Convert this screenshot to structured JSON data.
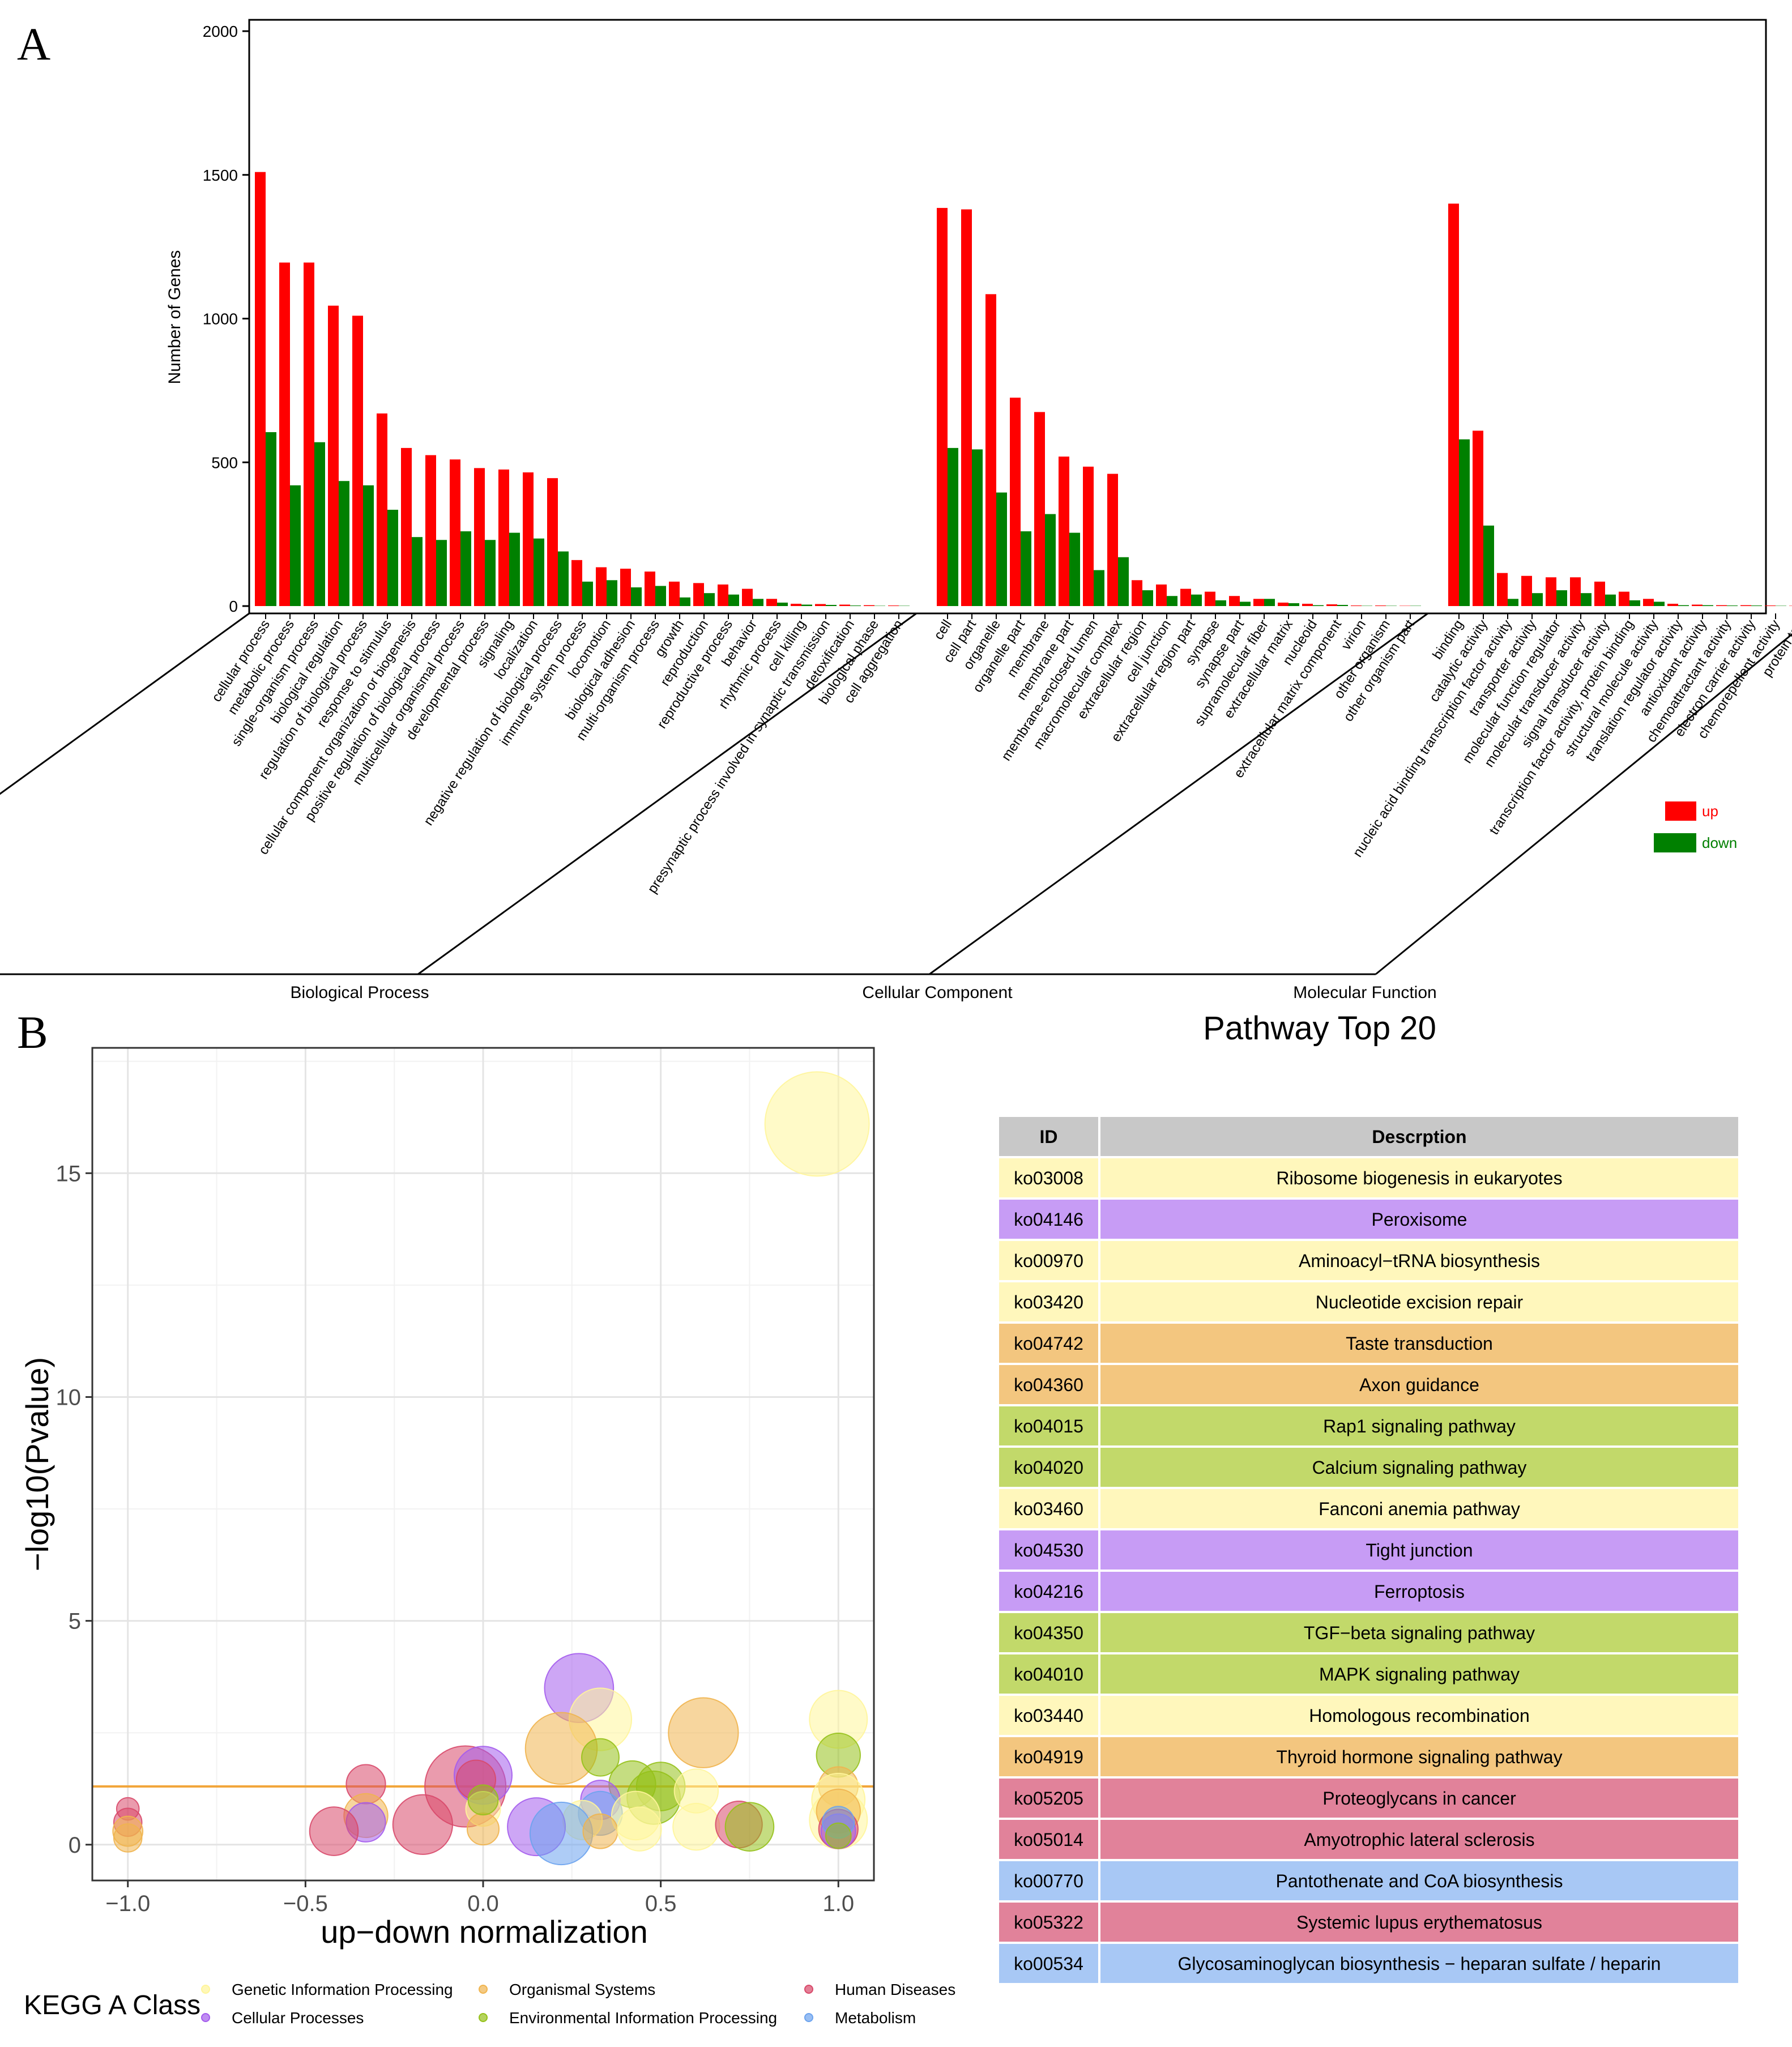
{
  "panel_labels": {
    "a": "A",
    "b": "B"
  },
  "chart_data": [
    {
      "type": "bar",
      "title": "",
      "ylabel": "Number of Genes",
      "xlabel": "",
      "ylim": [
        0,
        2000
      ],
      "yticks": [
        0,
        500,
        1000,
        1500,
        2000
      ],
      "legend": {
        "position": "right",
        "entries": [
          {
            "name": "up",
            "color": "#ff0000"
          },
          {
            "name": "down",
            "color": "#008000"
          }
        ]
      },
      "groups": [
        {
          "name": "Biological Process",
          "categories": [
            {
              "label": "cellular process",
              "up": 1510,
              "down": 605
            },
            {
              "label": "metabolic process",
              "up": 1195,
              "down": 420
            },
            {
              "label": "single-organism process",
              "up": 1195,
              "down": 570
            },
            {
              "label": "biological regulation",
              "up": 1045,
              "down": 435
            },
            {
              "label": "regulation of biological process",
              "up": 1010,
              "down": 420
            },
            {
              "label": "response to stimulus",
              "up": 670,
              "down": 335
            },
            {
              "label": "cellular component organization or biogenesis",
              "up": 550,
              "down": 240
            },
            {
              "label": "positive regulation of biological process",
              "up": 525,
              "down": 230
            },
            {
              "label": "multicellular organismal process",
              "up": 510,
              "down": 260
            },
            {
              "label": "developmental process",
              "up": 480,
              "down": 230
            },
            {
              "label": "signaling",
              "up": 475,
              "down": 255
            },
            {
              "label": "localization",
              "up": 465,
              "down": 235
            },
            {
              "label": "negative regulation of biological process",
              "up": 445,
              "down": 190
            },
            {
              "label": "immune system process",
              "up": 160,
              "down": 85
            },
            {
              "label": "locomotion",
              "up": 135,
              "down": 90
            },
            {
              "label": "biological adhesion",
              "up": 130,
              "down": 65
            },
            {
              "label": "multi-organism process",
              "up": 120,
              "down": 70
            },
            {
              "label": "growth",
              "up": 85,
              "down": 30
            },
            {
              "label": "reproduction",
              "up": 80,
              "down": 45
            },
            {
              "label": "reproductive process",
              "up": 75,
              "down": 40
            },
            {
              "label": "behavior",
              "up": 60,
              "down": 25
            },
            {
              "label": "rhythmic process",
              "up": 25,
              "down": 12
            },
            {
              "label": "cell killing",
              "up": 8,
              "down": 5
            },
            {
              "label": "presynaptic process involved in synaptic transmission",
              "up": 7,
              "down": 4
            },
            {
              "label": "detoxification",
              "up": 5,
              "down": 2
            },
            {
              "label": "biological phase",
              "up": 3,
              "down": 1
            },
            {
              "label": "cell aggregation",
              "up": 2,
              "down": 1
            }
          ]
        },
        {
          "name": "Cellular Component",
          "categories": [
            {
              "label": "cell",
              "up": 1385,
              "down": 550
            },
            {
              "label": "cell part",
              "up": 1380,
              "down": 545
            },
            {
              "label": "organelle",
              "up": 1085,
              "down": 395
            },
            {
              "label": "organelle part",
              "up": 725,
              "down": 260
            },
            {
              "label": "membrane",
              "up": 675,
              "down": 320
            },
            {
              "label": "membrane part",
              "up": 520,
              "down": 255
            },
            {
              "label": "membrane-enclosed lumen",
              "up": 485,
              "down": 125
            },
            {
              "label": "macromolecular complex",
              "up": 460,
              "down": 170
            },
            {
              "label": "extracellular region",
              "up": 90,
              "down": 55
            },
            {
              "label": "cell junction",
              "up": 75,
              "down": 35
            },
            {
              "label": "extracellular region part",
              "up": 60,
              "down": 40
            },
            {
              "label": "synapse",
              "up": 50,
              "down": 20
            },
            {
              "label": "synapse part",
              "up": 35,
              "down": 15
            },
            {
              "label": "supramolecular fiber",
              "up": 25,
              "down": 25
            },
            {
              "label": "extracellular matrix",
              "up": 12,
              "down": 10
            },
            {
              "label": "nucleoid",
              "up": 8,
              "down": 3
            },
            {
              "label": "extracellular matrix component",
              "up": 6,
              "down": 4
            },
            {
              "label": "virion",
              "up": 2,
              "down": 1
            },
            {
              "label": "other organism",
              "up": 2,
              "down": 1
            },
            {
              "label": "other organism part",
              "up": 1,
              "down": 1
            }
          ]
        },
        {
          "name": "Molecular Function",
          "categories": [
            {
              "label": "binding",
              "up": 1400,
              "down": 580
            },
            {
              "label": "catalytic activity",
              "up": 610,
              "down": 280
            },
            {
              "label": "nucleic acid binding transcription factor activity",
              "up": 115,
              "down": 25
            },
            {
              "label": "transporter activity",
              "up": 105,
              "down": 45
            },
            {
              "label": "molecular function regulator",
              "up": 100,
              "down": 55
            },
            {
              "label": "molecular transducer activity",
              "up": 100,
              "down": 45
            },
            {
              "label": "signal transducer activity",
              "up": 85,
              "down": 40
            },
            {
              "label": "transcription factor activity, protein binding",
              "up": 50,
              "down": 20
            },
            {
              "label": "structural molecule activity",
              "up": 25,
              "down": 15
            },
            {
              "label": "translation regulator activity",
              "up": 8,
              "down": 3
            },
            {
              "label": "antioxidant activity",
              "up": 5,
              "down": 3
            },
            {
              "label": "chemoattractant activity",
              "up": 3,
              "down": 2
            },
            {
              "label": "electron carrier activity",
              "up": 3,
              "down": 2
            },
            {
              "label": "chemorepellent activity",
              "up": 2,
              "down": 1
            },
            {
              "label": "protein tag",
              "up": 1,
              "down": 0
            }
          ]
        }
      ]
    },
    {
      "type": "scatter",
      "title": "",
      "xlabel": "up−down normalization",
      "ylabel": "−log10(Pvalue)",
      "xlim": [
        -1.1,
        1.1
      ],
      "ylim": [
        -0.8,
        17.8
      ],
      "xticks": [
        -1.0,
        -0.5,
        0.0,
        0.5,
        1.0
      ],
      "xtick_labels": [
        "−1.0",
        "−0.5",
        "0.0",
        "0.5",
        "1.0"
      ],
      "yticks": [
        0,
        5,
        10,
        15
      ],
      "threshold_y": 1.3,
      "grid": true,
      "legend": {
        "title": "KEGG A Class",
        "position": "bottom",
        "entries": [
          {
            "name": "Genetic Information Processing",
            "color": "#fff59a"
          },
          {
            "name": "Organismal Systems",
            "color": "#f0b44e"
          },
          {
            "name": "Human Diseases",
            "color": "#d8496a"
          },
          {
            "name": "Cellular Processes",
            "color": "#a45ced"
          },
          {
            "name": "Environmental Information Processing",
            "color": "#95c11a"
          },
          {
            "name": "Metabolism",
            "color": "#6ca3ee"
          }
        ]
      },
      "points": [
        {
          "x": 0.94,
          "y": 16.1,
          "size": 1.0,
          "class": "Genetic Information Processing"
        },
        {
          "x": 0.27,
          "y": 3.5,
          "size": 0.62,
          "class": "Cellular Processes"
        },
        {
          "x": 0.33,
          "y": 2.8,
          "size": 0.55,
          "class": "Genetic Information Processing"
        },
        {
          "x": 0.22,
          "y": 2.15,
          "size": 0.65,
          "class": "Organismal Systems"
        },
        {
          "x": 0.62,
          "y": 2.5,
          "size": 0.63,
          "class": "Organismal Systems"
        },
        {
          "x": 1.0,
          "y": 2.8,
          "size": 0.5,
          "class": "Genetic Information Processing"
        },
        {
          "x": 1.0,
          "y": 2.0,
          "size": 0.35,
          "class": "Environmental Information Processing"
        },
        {
          "x": 0.33,
          "y": 1.95,
          "size": 0.28,
          "class": "Environmental Information Processing"
        },
        {
          "x": -0.33,
          "y": 1.35,
          "size": 0.3,
          "class": "Human Diseases"
        },
        {
          "x": -0.05,
          "y": 1.3,
          "size": 0.75,
          "class": "Human Diseases"
        },
        {
          "x": 0.0,
          "y": 1.55,
          "size": 0.5,
          "class": "Cellular Processes"
        },
        {
          "x": -0.02,
          "y": 1.45,
          "size": 0.3,
          "class": "Human Diseases"
        },
        {
          "x": 0.42,
          "y": 1.35,
          "size": 0.38,
          "class": "Environmental Information Processing"
        },
        {
          "x": 0.5,
          "y": 1.3,
          "size": 0.4,
          "class": "Environmental Information Processing"
        },
        {
          "x": 0.48,
          "y": 1.05,
          "size": 0.45,
          "class": "Environmental Information Processing"
        },
        {
          "x": 0.6,
          "y": 1.2,
          "size": 0.35,
          "class": "Genetic Information Processing"
        },
        {
          "x": 0.33,
          "y": 1.0,
          "size": 0.3,
          "class": "Cellular Processes"
        },
        {
          "x": 1.0,
          "y": 1.3,
          "size": 0.3,
          "class": "Organismal Systems"
        },
        {
          "x": 1.0,
          "y": 1.0,
          "size": 0.45,
          "class": "Genetic Information Processing"
        },
        {
          "x": 0.33,
          "y": 0.7,
          "size": 0.35,
          "class": "Metabolism"
        },
        {
          "x": 0.28,
          "y": 0.55,
          "size": 0.3,
          "class": "Genetic Information Processing"
        },
        {
          "x": 0.43,
          "y": 0.65,
          "size": 0.4,
          "class": "Genetic Information Processing"
        },
        {
          "x": -0.33,
          "y": 0.65,
          "size": 0.35,
          "class": "Organismal Systems"
        },
        {
          "x": -0.33,
          "y": 0.5,
          "size": 0.3,
          "class": "Cellular Processes"
        },
        {
          "x": -0.17,
          "y": 0.45,
          "size": 0.52,
          "class": "Human Diseases"
        },
        {
          "x": -0.42,
          "y": 0.3,
          "size": 0.4,
          "class": "Human Diseases"
        },
        {
          "x": 0.0,
          "y": 0.8,
          "size": 0.25,
          "class": "Genetic Information Processing"
        },
        {
          "x": 0.0,
          "y": 0.35,
          "size": 0.22,
          "class": "Organismal Systems"
        },
        {
          "x": 0.0,
          "y": 1.0,
          "size": 0.2,
          "class": "Environmental Information Processing"
        },
        {
          "x": 0.15,
          "y": 0.4,
          "size": 0.5,
          "class": "Cellular Processes"
        },
        {
          "x": 0.22,
          "y": 0.25,
          "size": 0.55,
          "class": "Metabolism"
        },
        {
          "x": 0.33,
          "y": 0.3,
          "size": 0.25,
          "class": "Organismal Systems"
        },
        {
          "x": 0.44,
          "y": 0.35,
          "size": 0.35,
          "class": "Genetic Information Processing"
        },
        {
          "x": 0.6,
          "y": 0.4,
          "size": 0.38,
          "class": "Genetic Information Processing"
        },
        {
          "x": 0.72,
          "y": 0.45,
          "size": 0.38,
          "class": "Human Diseases"
        },
        {
          "x": 0.75,
          "y": 0.4,
          "size": 0.4,
          "class": "Environmental Information Processing"
        },
        {
          "x": 1.0,
          "y": 0.55,
          "size": 0.5,
          "class": "Genetic Information Processing"
        },
        {
          "x": 1.0,
          "y": 0.75,
          "size": 0.35,
          "class": "Organismal Systems"
        },
        {
          "x": 1.0,
          "y": 0.35,
          "size": 0.3,
          "class": "Human Diseases"
        },
        {
          "x": 1.0,
          "y": 0.3,
          "size": 0.25,
          "class": "Cellular Processes"
        },
        {
          "x": 1.0,
          "y": 0.5,
          "size": 0.22,
          "class": "Metabolism"
        },
        {
          "x": 1.0,
          "y": 0.2,
          "size": 0.15,
          "class": "Environmental Information Processing"
        },
        {
          "x": -1.0,
          "y": 0.8,
          "size": 0.12,
          "class": "Human Diseases"
        },
        {
          "x": -1.0,
          "y": 0.5,
          "size": 0.18,
          "class": "Human Diseases"
        },
        {
          "x": -1.0,
          "y": 0.3,
          "size": 0.2,
          "class": "Organismal Systems"
        },
        {
          "x": -1.0,
          "y": 0.15,
          "size": 0.18,
          "class": "Organismal Systems"
        }
      ]
    },
    {
      "type": "table",
      "title": "Pathway Top 20",
      "columns": [
        "ID",
        "Descrption"
      ],
      "header_color": "#c8c8c8",
      "rows": [
        {
          "id": "ko03008",
          "description": "Ribosome biogenesis in eukaryotes",
          "color": "#fff7bc"
        },
        {
          "id": "ko04146",
          "description": "Peroxisome",
          "color": "#c79cf5"
        },
        {
          "id": "ko00970",
          "description": "Aminoacyl−tRNA biosynthesis",
          "color": "#fff7bc"
        },
        {
          "id": "ko03420",
          "description": "Nucleotide excision repair",
          "color": "#fff7bc"
        },
        {
          "id": "ko04742",
          "description": "Taste transduction",
          "color": "#f3c67f"
        },
        {
          "id": "ko04360",
          "description": "Axon guidance",
          "color": "#f3c67f"
        },
        {
          "id": "ko04015",
          "description": "Rap1 signaling pathway",
          "color": "#c2d96a"
        },
        {
          "id": "ko04020",
          "description": "Calcium signaling pathway",
          "color": "#c2d96a"
        },
        {
          "id": "ko03460",
          "description": "Fanconi anemia pathway",
          "color": "#fff7bc"
        },
        {
          "id": "ko04530",
          "description": "Tight junction",
          "color": "#c79cf5"
        },
        {
          "id": "ko04216",
          "description": "Ferroptosis",
          "color": "#c79cf5"
        },
        {
          "id": "ko04350",
          "description": "TGF−beta signaling pathway",
          "color": "#c2d96a"
        },
        {
          "id": "ko04010",
          "description": "MAPK signaling pathway",
          "color": "#c2d96a"
        },
        {
          "id": "ko03440",
          "description": "Homologous recombination",
          "color": "#fff7bc"
        },
        {
          "id": "ko04919",
          "description": "Thyroid hormone signaling pathway",
          "color": "#f3c67f"
        },
        {
          "id": "ko05205",
          "description": "Proteoglycans in cancer",
          "color": "#e1829a"
        },
        {
          "id": "ko05014",
          "description": "Amyotrophic lateral sclerosis",
          "color": "#e1829a"
        },
        {
          "id": "ko00770",
          "description": "Pantothenate and CoA biosynthesis",
          "color": "#a8c8f5"
        },
        {
          "id": "ko05322",
          "description": "Systemic lupus erythematosus",
          "color": "#e1829a"
        },
        {
          "id": "ko00534",
          "description": "Glycosaminoglycan biosynthesis − heparan sulfate / heparin",
          "color": "#a8c8f5"
        }
      ]
    }
  ]
}
